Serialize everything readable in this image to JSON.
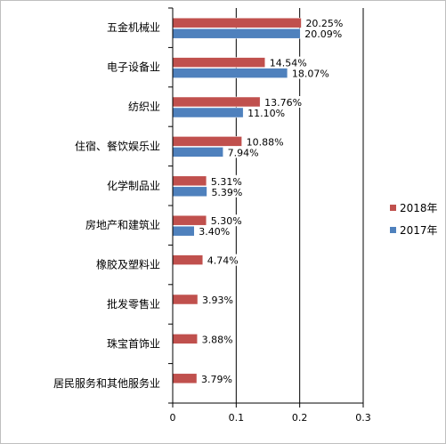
{
  "chart_data": {
    "type": "bar",
    "orientation": "horizontal",
    "categories": [
      "五金机械业",
      "电子设备业",
      "纺织业",
      "住宿、餐饮娱乐业",
      "化学制品业",
      "房地产和建筑业",
      "橡胶及塑料业",
      "批发零售业",
      "珠宝首饰业",
      "居民服务和其他服务业"
    ],
    "series": [
      {
        "name": "2018年",
        "color": "#c0504d",
        "values": [
          0.2025,
          0.1454,
          0.1376,
          0.1088,
          0.0531,
          0.053,
          0.0474,
          0.0393,
          0.0388,
          0.0379
        ],
        "labels": [
          "20.25%",
          "14.54%",
          "13.76%",
          "10.88%",
          "5.31%",
          "5.30%",
          "4.74%",
          "3.93%",
          "3.88%",
          "3.79%"
        ]
      },
      {
        "name": "2017年",
        "color": "#4f81bd",
        "values": [
          0.2009,
          0.1807,
          0.111,
          0.0794,
          0.0539,
          0.034,
          null,
          null,
          null,
          null
        ],
        "labels": [
          "20.09%",
          "18.07%",
          "11.10%",
          "7.94%",
          "5.39%",
          "3.40%",
          null,
          null,
          null,
          null
        ]
      }
    ],
    "xlim": [
      0,
      0.3
    ],
    "xticks": [
      "0",
      "0.1",
      "0.2",
      "0.3"
    ],
    "grid": "vertical",
    "legend_position": "right"
  }
}
